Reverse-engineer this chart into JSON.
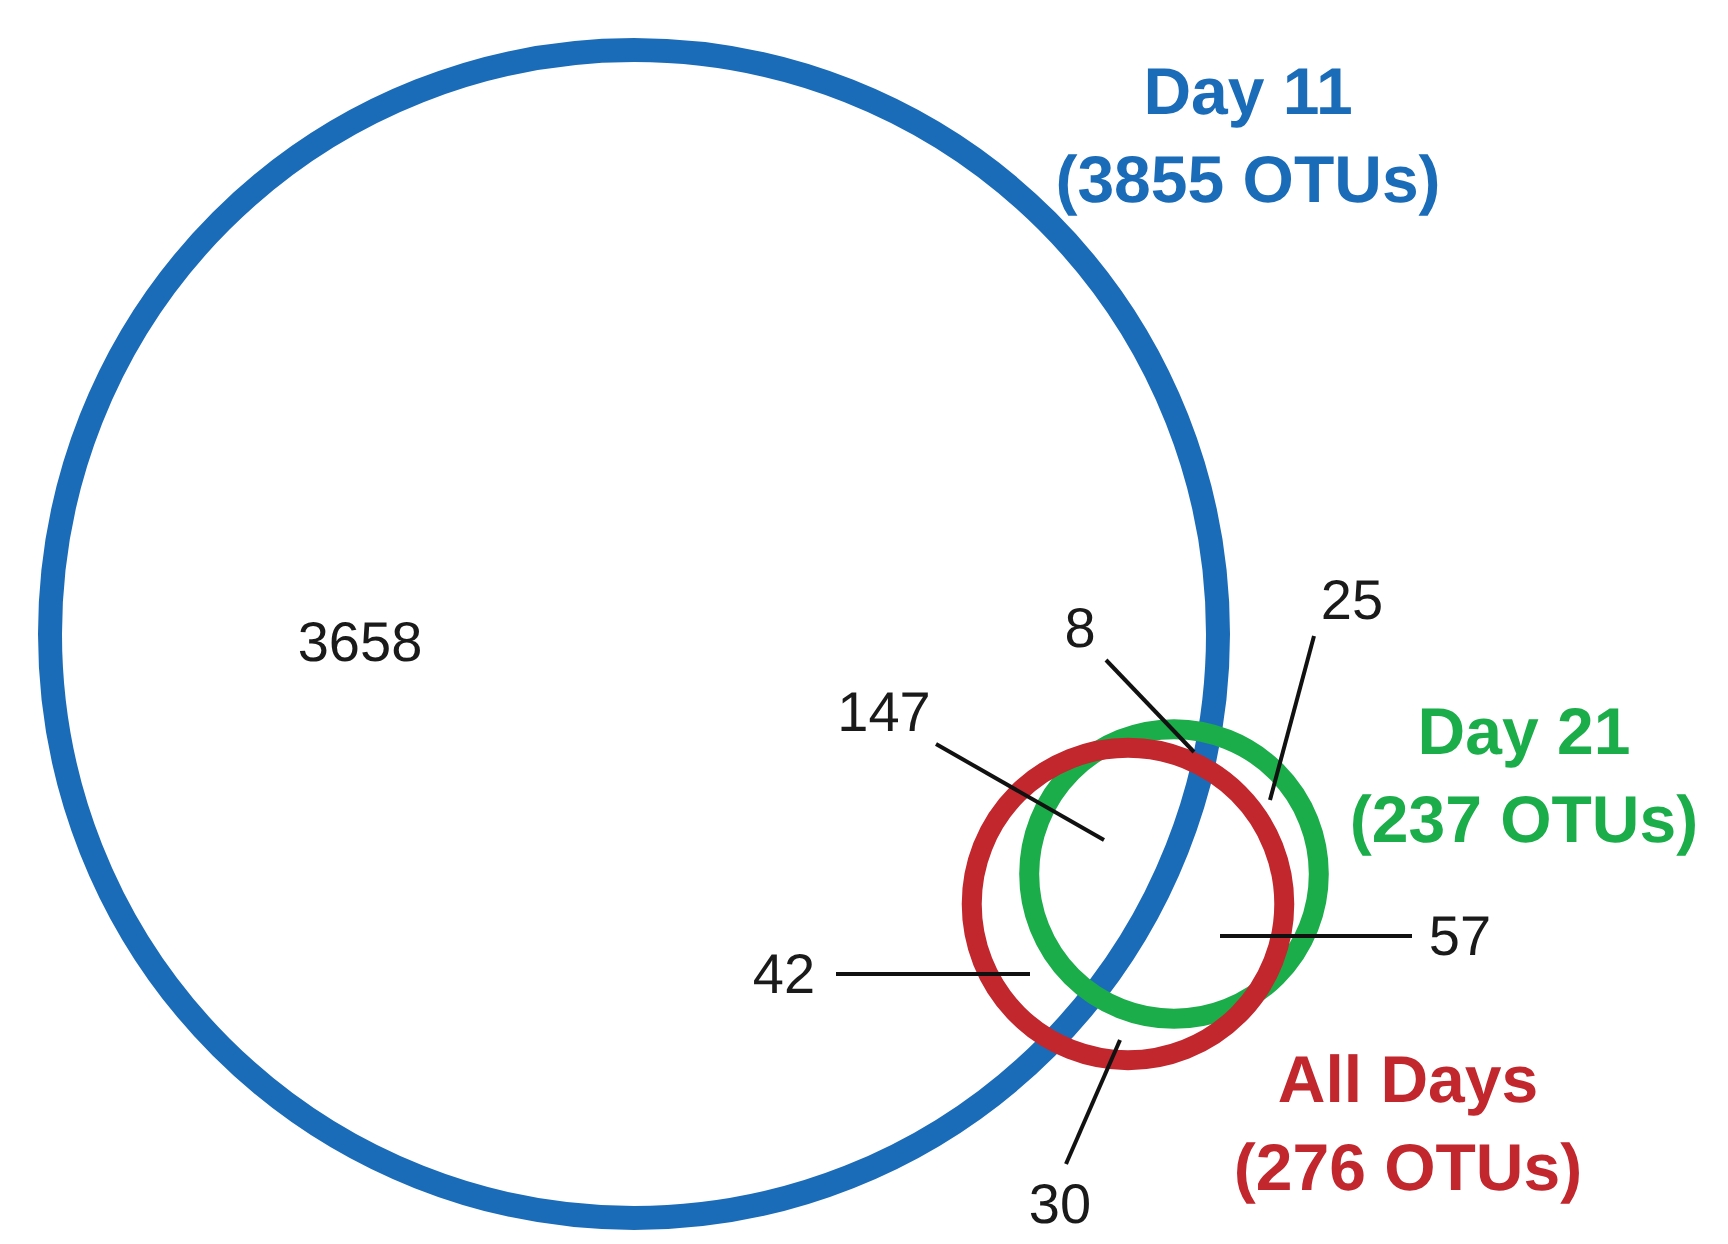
{
  "chart_data": {
    "type": "other",
    "categories": [
      "Day 11",
      "Day 21",
      "All Days"
    ],
    "values": [
      3855,
      237,
      276
    ],
    "value_labels": [
      "(3855 OTUs)",
      "(237 OTUs)",
      "(276 OTUs)"
    ],
    "colors": [
      "#1b6cb8",
      "#1cad4b",
      "#c1272d"
    ],
    "annotations": [
      "3658",
      "8",
      "25",
      "147",
      "57",
      "42",
      "30"
    ]
  }
}
